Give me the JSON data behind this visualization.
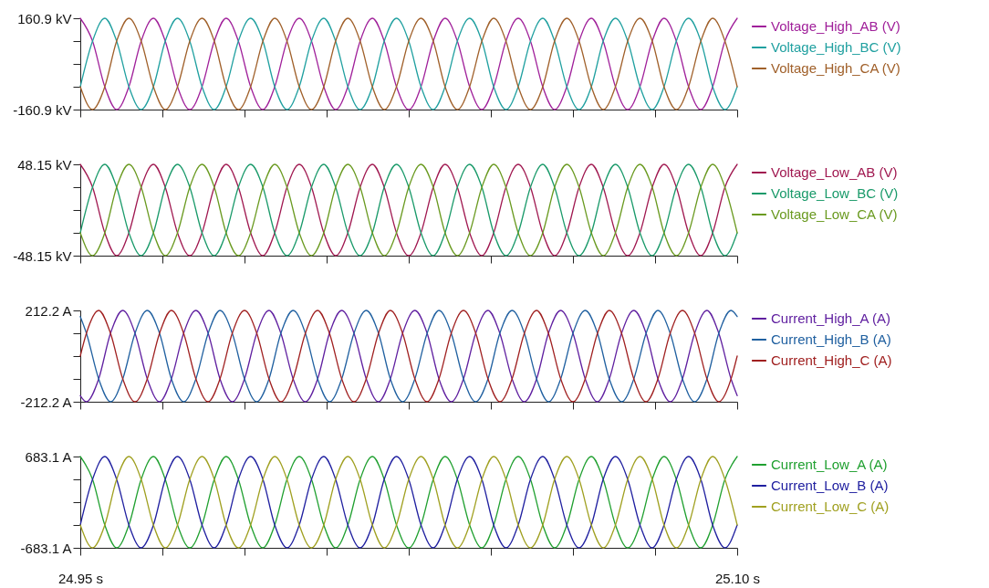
{
  "chart_data": [
    {
      "type": "line",
      "legend": "right",
      "tick_labels": "y",
      "xlim": [
        24.95,
        25.1
      ],
      "xticks": [
        {
          "value": 24.95,
          "label": null
        },
        {
          "value": 24.96875,
          "label": null
        },
        {
          "value": 24.9875,
          "label": null
        },
        {
          "value": 25.00625,
          "label": null
        },
        {
          "value": 25.025,
          "label": null
        },
        {
          "value": 25.04375,
          "label": null
        },
        {
          "value": 25.0625,
          "label": null
        },
        {
          "value": 25.08125,
          "label": null
        },
        {
          "value": 25.1,
          "label": null
        }
      ],
      "ylim": [
        -160.9,
        160.9
      ],
      "yticks": [
        {
          "value": -160.9,
          "label": "-160.9 kV"
        },
        {
          "value": -80.45,
          "label": null
        },
        {
          "value": 0,
          "label": null
        },
        {
          "value": 80.45,
          "label": null
        },
        {
          "value": 160.9,
          "label": "160.9 kV"
        }
      ],
      "x": [
        24.95,
        24.9528,
        24.9556,
        24.9583,
        24.9611,
        24.9639,
        24.9667,
        24.9694,
        24.9722,
        24.975,
        24.9778,
        24.9806,
        24.9833,
        24.9861,
        24.9889,
        24.9917,
        24.9944,
        24.9972,
        25.0,
        25.0028,
        25.0056,
        25.0083,
        25.0111,
        25.0139,
        25.0167,
        25.0194,
        25.0222,
        25.025,
        25.0278,
        25.0306,
        25.0333,
        25.0361,
        25.0389,
        25.0417,
        25.0444,
        25.0472,
        25.05,
        25.0528,
        25.0556,
        25.0583,
        25.0611,
        25.0639,
        25.0667,
        25.0694,
        25.0722,
        25.075,
        25.0778,
        25.0806,
        25.0833,
        25.0861,
        25.0889,
        25.0917,
        25.0944,
        25.0972,
        25.1
      ],
      "series": [
        {
          "name": "Voltage_High_AB (V)",
          "color": "#a0209a",
          "values": [
            160.9,
            80.45,
            -80.45,
            -160.9,
            -80.45,
            80.45,
            160.9,
            80.45,
            -80.45,
            -160.9,
            -80.45,
            80.45,
            160.9,
            80.45,
            -80.45,
            -160.9,
            -80.45,
            80.45,
            160.9,
            80.45,
            -80.45,
            -160.9,
            -80.45,
            80.45,
            160.9,
            80.45,
            -80.45,
            -160.9,
            -80.45,
            80.45,
            160.9,
            80.45,
            -80.45,
            -160.9,
            -80.45,
            80.45,
            160.9,
            80.45,
            -80.45,
            -160.9,
            -80.45,
            80.45,
            160.9,
            80.45,
            -80.45,
            -160.9,
            -80.45,
            80.45,
            160.9,
            80.45,
            -80.45,
            -160.9,
            -80.45,
            80.45,
            160.9
          ]
        },
        {
          "name": "Voltage_High_BC (V)",
          "color": "#20a0a0",
          "values": [
            -80.45,
            80.45,
            160.9,
            80.45,
            -80.45,
            -160.9,
            -80.45,
            80.45,
            160.9,
            80.45,
            -80.45,
            -160.9,
            -80.45,
            80.45,
            160.9,
            80.45,
            -80.45,
            -160.9,
            -80.45,
            80.45,
            160.9,
            80.45,
            -80.45,
            -160.9,
            -80.45,
            80.45,
            160.9,
            80.45,
            -80.45,
            -160.9,
            -80.45,
            80.45,
            160.9,
            80.45,
            -80.45,
            -160.9,
            -80.45,
            80.45,
            160.9,
            80.45,
            -80.45,
            -160.9,
            -80.45,
            80.45,
            160.9,
            80.45,
            -80.45,
            -160.9,
            -80.45,
            80.45,
            160.9,
            80.45,
            -80.45,
            -160.9,
            -80.45
          ]
        },
        {
          "name": "Voltage_High_CA (V)",
          "color": "#a0602a",
          "values": [
            -80.45,
            -160.9,
            -80.45,
            80.45,
            160.9,
            80.45,
            -80.45,
            -160.9,
            -80.45,
            80.45,
            160.9,
            80.45,
            -80.45,
            -160.9,
            -80.45,
            80.45,
            160.9,
            80.45,
            -80.45,
            -160.9,
            -80.45,
            80.45,
            160.9,
            80.45,
            -80.45,
            -160.9,
            -80.45,
            80.45,
            160.9,
            80.45,
            -80.45,
            -160.9,
            -80.45,
            80.45,
            160.9,
            80.45,
            -80.45,
            -160.9,
            -80.45,
            80.45,
            160.9,
            80.45,
            -80.45,
            -160.9,
            -80.45,
            80.45,
            160.9,
            80.45,
            -80.45,
            -160.9,
            -80.45,
            80.45,
            160.9,
            80.45,
            -80.45
          ]
        }
      ]
    },
    {
      "type": "line",
      "legend": "right",
      "tick_labels": "y",
      "xlim": [
        24.95,
        25.1
      ],
      "xticks": [
        {
          "value": 24.95,
          "label": null
        },
        {
          "value": 24.96875,
          "label": null
        },
        {
          "value": 24.9875,
          "label": null
        },
        {
          "value": 25.00625,
          "label": null
        },
        {
          "value": 25.025,
          "label": null
        },
        {
          "value": 25.04375,
          "label": null
        },
        {
          "value": 25.0625,
          "label": null
        },
        {
          "value": 25.08125,
          "label": null
        },
        {
          "value": 25.1,
          "label": null
        }
      ],
      "ylim": [
        -48.15,
        48.15
      ],
      "yticks": [
        {
          "value": -48.15,
          "label": "-48.15 kV"
        },
        {
          "value": -24.08,
          "label": null
        },
        {
          "value": 0,
          "label": null
        },
        {
          "value": 24.08,
          "label": null
        },
        {
          "value": 48.15,
          "label": "48.15 kV"
        }
      ],
      "x": [
        24.95,
        24.9528,
        24.9556,
        24.9583,
        24.9611,
        24.9639,
        24.9667,
        24.9694,
        24.9722,
        24.975,
        24.9778,
        24.9806,
        24.9833,
        24.9861,
        24.9889,
        24.9917,
        24.9944,
        24.9972,
        25.0,
        25.0028,
        25.0056,
        25.0083,
        25.0111,
        25.0139,
        25.0167,
        25.0194,
        25.0222,
        25.025,
        25.0278,
        25.0306,
        25.0333,
        25.0361,
        25.0389,
        25.0417,
        25.0444,
        25.0472,
        25.05,
        25.0528,
        25.0556,
        25.0583,
        25.0611,
        25.0639,
        25.0667,
        25.0694,
        25.0722,
        25.075,
        25.0778,
        25.0806,
        25.0833,
        25.0861,
        25.0889,
        25.0917,
        25.0944,
        25.0972,
        25.1
      ],
      "series": [
        {
          "name": "Voltage_Low_AB (V)",
          "color": "#a01850",
          "values": [
            48.15,
            24.08,
            -24.08,
            -48.15,
            -24.08,
            24.08,
            48.15,
            24.08,
            -24.08,
            -48.15,
            -24.08,
            24.08,
            48.15,
            24.08,
            -24.08,
            -48.15,
            -24.08,
            24.08,
            48.15,
            24.08,
            -24.08,
            -48.15,
            -24.08,
            24.08,
            48.15,
            24.08,
            -24.08,
            -48.15,
            -24.08,
            24.08,
            48.15,
            24.08,
            -24.08,
            -48.15,
            -24.08,
            24.08,
            48.15,
            24.08,
            -24.08,
            -48.15,
            -24.08,
            24.08,
            48.15,
            24.08,
            -24.08,
            -48.15,
            -24.08,
            24.08,
            48.15,
            24.08,
            -24.08,
            -48.15,
            -24.08,
            24.08,
            48.15
          ]
        },
        {
          "name": "Voltage_Low_BC (V)",
          "color": "#1a9a6a",
          "values": [
            -24.08,
            24.08,
            48.15,
            24.08,
            -24.08,
            -48.15,
            -24.08,
            24.08,
            48.15,
            24.08,
            -24.08,
            -48.15,
            -24.08,
            24.08,
            48.15,
            24.08,
            -24.08,
            -48.15,
            -24.08,
            24.08,
            48.15,
            24.08,
            -24.08,
            -48.15,
            -24.08,
            24.08,
            48.15,
            24.08,
            -24.08,
            -48.15,
            -24.08,
            24.08,
            48.15,
            24.08,
            -24.08,
            -48.15,
            -24.08,
            24.08,
            48.15,
            24.08,
            -24.08,
            -48.15,
            -24.08,
            24.08,
            48.15,
            24.08,
            -24.08,
            -48.15,
            -24.08,
            24.08,
            48.15,
            24.08,
            -24.08,
            -48.15,
            -24.08
          ]
        },
        {
          "name": "Voltage_Low_CA (V)",
          "color": "#6a9a20",
          "values": [
            -24.08,
            -48.15,
            -24.08,
            24.08,
            48.15,
            24.08,
            -24.08,
            -48.15,
            -24.08,
            24.08,
            48.15,
            24.08,
            -24.08,
            -48.15,
            -24.08,
            24.08,
            48.15,
            24.08,
            -24.08,
            -48.15,
            -24.08,
            24.08,
            48.15,
            24.08,
            -24.08,
            -48.15,
            -24.08,
            24.08,
            48.15,
            24.08,
            -24.08,
            -48.15,
            -24.08,
            24.08,
            48.15,
            24.08,
            -24.08,
            -48.15,
            -24.08,
            24.08,
            48.15,
            24.08,
            -24.08,
            -48.15,
            -24.08,
            24.08,
            48.15,
            24.08,
            -24.08,
            -48.15,
            -24.08,
            24.08,
            48.15,
            24.08,
            -24.08
          ]
        }
      ]
    },
    {
      "type": "line",
      "legend": "right",
      "tick_labels": "y",
      "xlim": [
        24.95,
        25.1
      ],
      "xticks": [
        {
          "value": 24.95,
          "label": null
        },
        {
          "value": 24.96875,
          "label": null
        },
        {
          "value": 24.9875,
          "label": null
        },
        {
          "value": 25.00625,
          "label": null
        },
        {
          "value": 25.025,
          "label": null
        },
        {
          "value": 25.04375,
          "label": null
        },
        {
          "value": 25.0625,
          "label": null
        },
        {
          "value": 25.08125,
          "label": null
        },
        {
          "value": 25.1,
          "label": null
        }
      ],
      "ylim": [
        -212.2,
        212.2
      ],
      "yticks": [
        {
          "value": -212.2,
          "label": "-212.2 A"
        },
        {
          "value": -106.1,
          "label": null
        },
        {
          "value": 0,
          "label": null
        },
        {
          "value": 106.1,
          "label": null
        },
        {
          "value": 212.2,
          "label": "212.2 A"
        }
      ],
      "x": [
        24.95,
        24.9514,
        24.9542,
        24.9569,
        24.9597,
        24.9625,
        24.9653,
        24.9681,
        24.9708,
        24.9736,
        24.9764,
        24.9792,
        24.9819,
        24.9847,
        24.9875,
        24.9903,
        24.9931,
        24.9958,
        24.9986,
        25.0014,
        25.0042,
        25.0069,
        25.0097,
        25.0125,
        25.0153,
        25.0181,
        25.0208,
        25.0236,
        25.0264,
        25.0292,
        25.0319,
        25.0347,
        25.0375,
        25.0403,
        25.0431,
        25.0458,
        25.0486,
        25.0514,
        25.0542,
        25.0569,
        25.0597,
        25.0625,
        25.0653,
        25.0681,
        25.0708,
        25.0736,
        25.0764,
        25.0792,
        25.0819,
        25.0847,
        25.0875,
        25.0903,
        25.0931,
        25.0958,
        25.0986,
        25.1
      ],
      "series": [
        {
          "name": "Current_High_A (A)",
          "color": "#6020a0",
          "values": [
            -183.8,
            -212.2,
            -106.1,
            106.1,
            212.2,
            106.1,
            -106.1,
            -212.2,
            -106.1,
            106.1,
            212.2,
            106.1,
            -106.1,
            -212.2,
            -106.1,
            106.1,
            212.2,
            106.1,
            -106.1,
            -212.2,
            -106.1,
            106.1,
            212.2,
            106.1,
            -106.1,
            -212.2,
            -106.1,
            106.1,
            212.2,
            106.1,
            -106.1,
            -212.2,
            -106.1,
            106.1,
            212.2,
            106.1,
            -106.1,
            -212.2,
            -106.1,
            106.1,
            212.2,
            106.1,
            -106.1,
            -212.2,
            -106.1,
            106.1,
            212.2,
            106.1,
            -106.1,
            -212.2,
            -106.1,
            106.1,
            212.2,
            106.1,
            -106.1,
            -183.8
          ]
        },
        {
          "name": "Current_High_B (A)",
          "color": "#2060a0",
          "values": [
            183.8,
            106.1,
            -106.1,
            -212.2,
            -106.1,
            106.1,
            212.2,
            106.1,
            -106.1,
            -212.2,
            -106.1,
            106.1,
            212.2,
            106.1,
            -106.1,
            -212.2,
            -106.1,
            106.1,
            212.2,
            106.1,
            -106.1,
            -212.2,
            -106.1,
            106.1,
            212.2,
            106.1,
            -106.1,
            -212.2,
            -106.1,
            106.1,
            212.2,
            106.1,
            -106.1,
            -212.2,
            -106.1,
            106.1,
            212.2,
            106.1,
            -106.1,
            -212.2,
            -106.1,
            106.1,
            212.2,
            106.1,
            -106.1,
            -212.2,
            -106.1,
            106.1,
            212.2,
            106.1,
            -106.1,
            -212.2,
            -106.1,
            106.1,
            212.2,
            183.8
          ]
        },
        {
          "name": "Current_High_C (A)",
          "color": "#a02020",
          "values": [
            0,
            106.1,
            212.2,
            106.1,
            -106.1,
            -212.2,
            -106.1,
            106.1,
            212.2,
            106.1,
            -106.1,
            -212.2,
            -106.1,
            106.1,
            212.2,
            106.1,
            -106.1,
            -212.2,
            -106.1,
            106.1,
            212.2,
            106.1,
            -106.1,
            -212.2,
            -106.1,
            106.1,
            212.2,
            106.1,
            -106.1,
            -212.2,
            -106.1,
            106.1,
            212.2,
            106.1,
            -106.1,
            -212.2,
            -106.1,
            106.1,
            212.2,
            106.1,
            -106.1,
            -212.2,
            -106.1,
            106.1,
            212.2,
            106.1,
            -106.1,
            -212.2,
            -106.1,
            106.1,
            212.2,
            106.1,
            -106.1,
            -212.2,
            -106.1,
            0
          ]
        }
      ]
    },
    {
      "type": "line",
      "legend": "right",
      "xlim": [
        24.95,
        25.1
      ],
      "xticks": [
        {
          "value": 24.95,
          "label": "24.95 s"
        },
        {
          "value": 24.96875,
          "label": null
        },
        {
          "value": 24.9875,
          "label": null
        },
        {
          "value": 25.00625,
          "label": null
        },
        {
          "value": 25.025,
          "label": null
        },
        {
          "value": 25.04375,
          "label": null
        },
        {
          "value": 25.0625,
          "label": null
        },
        {
          "value": 25.08125,
          "label": null
        },
        {
          "value": 25.1,
          "label": "25.10 s"
        }
      ],
      "ylim": [
        -683.1,
        683.1
      ],
      "yticks": [
        {
          "value": -683.1,
          "label": "-683.1 A"
        },
        {
          "value": -341.6,
          "label": null
        },
        {
          "value": 0,
          "label": null
        },
        {
          "value": 341.6,
          "label": null
        },
        {
          "value": 683.1,
          "label": "683.1 A"
        }
      ],
      "x": [
        24.95,
        24.9528,
        24.9556,
        24.9583,
        24.9611,
        24.9639,
        24.9667,
        24.9694,
        24.9722,
        24.975,
        24.9778,
        24.9806,
        24.9833,
        24.9861,
        24.9889,
        24.9917,
        24.9944,
        24.9972,
        25.0,
        25.0028,
        25.0056,
        25.0083,
        25.0111,
        25.0139,
        25.0167,
        25.0194,
        25.0222,
        25.025,
        25.0278,
        25.0306,
        25.0333,
        25.0361,
        25.0389,
        25.0417,
        25.0444,
        25.0472,
        25.05,
        25.0528,
        25.0556,
        25.0583,
        25.0611,
        25.0639,
        25.0667,
        25.0694,
        25.0722,
        25.075,
        25.0778,
        25.0806,
        25.0833,
        25.0861,
        25.0889,
        25.0917,
        25.0944,
        25.0972,
        25.1
      ],
      "series": [
        {
          "name": "Current_Low_A (A)",
          "color": "#20a030",
          "values": [
            683.1,
            341.6,
            -341.6,
            -683.1,
            -341.6,
            341.6,
            683.1,
            341.6,
            -341.6,
            -683.1,
            -341.6,
            341.6,
            683.1,
            341.6,
            -341.6,
            -683.1,
            -341.6,
            341.6,
            683.1,
            341.6,
            -341.6,
            -683.1,
            -341.6,
            341.6,
            683.1,
            341.6,
            -341.6,
            -683.1,
            -341.6,
            341.6,
            683.1,
            341.6,
            -341.6,
            -683.1,
            -341.6,
            341.6,
            683.1,
            341.6,
            -341.6,
            -683.1,
            -341.6,
            341.6,
            683.1,
            341.6,
            -341.6,
            -683.1,
            -341.6,
            341.6,
            683.1,
            341.6,
            -341.6,
            -683.1,
            -341.6,
            341.6,
            683.1
          ]
        },
        {
          "name": "Current_Low_B (A)",
          "color": "#2020a0",
          "values": [
            -341.6,
            341.6,
            683.1,
            341.6,
            -341.6,
            -683.1,
            -341.6,
            341.6,
            683.1,
            341.6,
            -341.6,
            -683.1,
            -341.6,
            341.6,
            683.1,
            341.6,
            -341.6,
            -683.1,
            -341.6,
            341.6,
            683.1,
            341.6,
            -341.6,
            -683.1,
            -341.6,
            341.6,
            683.1,
            341.6,
            -341.6,
            -683.1,
            -341.6,
            341.6,
            683.1,
            341.6,
            -341.6,
            -683.1,
            -341.6,
            341.6,
            683.1,
            341.6,
            -341.6,
            -683.1,
            -341.6,
            341.6,
            683.1,
            341.6,
            -341.6,
            -683.1,
            -341.6,
            341.6,
            683.1,
            341.6,
            -341.6,
            -683.1,
            -341.6
          ]
        },
        {
          "name": "Current_Low_C (A)",
          "color": "#a0a020",
          "values": [
            -341.6,
            -683.1,
            -341.6,
            341.6,
            683.1,
            341.6,
            -341.6,
            -683.1,
            -341.6,
            341.6,
            683.1,
            341.6,
            -341.6,
            -683.1,
            -341.6,
            341.6,
            683.1,
            341.6,
            -341.6,
            -683.1,
            -341.6,
            341.6,
            683.1,
            341.6,
            -341.6,
            -683.1,
            -341.6,
            341.6,
            683.1,
            341.6,
            -341.6,
            -683.1,
            -341.6,
            341.6,
            683.1,
            341.6,
            -341.6,
            -683.1,
            -341.6,
            341.6,
            683.1,
            341.6,
            -341.6,
            -683.1,
            -341.6,
            341.6,
            683.1,
            341.6,
            -341.6,
            -683.1,
            -341.6,
            341.6,
            683.1,
            341.6,
            -341.6
          ]
        }
      ]
    }
  ]
}
